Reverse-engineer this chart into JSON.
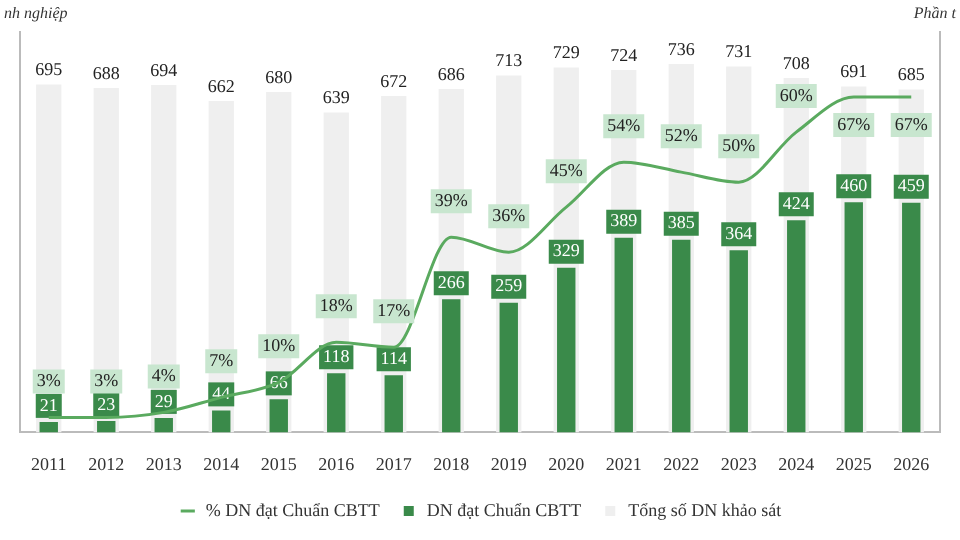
{
  "chart_data": {
    "type": "bar",
    "ylabel": "nh nghiệp",
    "y2label": "Phần t",
    "categories": [
      "2011",
      "2012",
      "2013",
      "2014",
      "2015",
      "2016",
      "2017",
      "2018",
      "2019",
      "2020",
      "2021",
      "2022",
      "2023",
      "2024",
      "2025",
      "2026"
    ],
    "series": [
      {
        "name": "DN đạt Chuẩn CBTT",
        "color": "#3a8a4a",
        "values": [
          21,
          23,
          29,
          44,
          66,
          118,
          114,
          266,
          259,
          329,
          389,
          385,
          364,
          424,
          460,
          459
        ]
      },
      {
        "name": "Tổng số DN khảo sát",
        "color": "#efefef",
        "values": [
          695,
          688,
          694,
          662,
          680,
          639,
          672,
          686,
          713,
          729,
          724,
          736,
          731,
          708,
          691,
          685
        ]
      },
      {
        "name": "% DN đạt Chuẩn CBTT",
        "type": "line",
        "axis": "y2",
        "color": "#5aaa5f",
        "marker": "none",
        "values": [
          3,
          3,
          4,
          7,
          10,
          18,
          17,
          39,
          36,
          45,
          54,
          52,
          50,
          60,
          67,
          67
        ],
        "value_labels": [
          "3%",
          "3%",
          "4%",
          "7%",
          "10%",
          "18%",
          "17%",
          "39%",
          "36%",
          "45%",
          "54%",
          "52%",
          "50%",
          "60%",
          "67%",
          "67%"
        ]
      }
    ],
    "ylim": [
      0,
      800
    ],
    "y2lim": [
      0,
      80
    ],
    "tick_labels": "x",
    "data_labels": true,
    "grid": false,
    "legend": "bottom"
  }
}
